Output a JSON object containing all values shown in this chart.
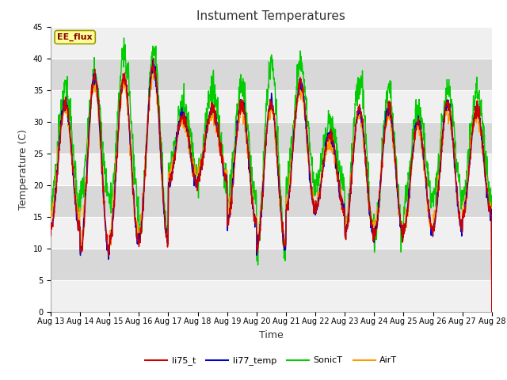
{
  "title": "Instument Temperatures",
  "xlabel": "Time",
  "ylabel": "Temperature (C)",
  "ylim": [
    0,
    45
  ],
  "x_ticks": [
    "Aug 13",
    "Aug 14",
    "Aug 15",
    "Aug 16",
    "Aug 17",
    "Aug 18",
    "Aug 19",
    "Aug 20",
    "Aug 21",
    "Aug 22",
    "Aug 23",
    "Aug 24",
    "Aug 25",
    "Aug 26",
    "Aug 27",
    "Aug 28"
  ],
  "colors": {
    "li75_t": "#cc0000",
    "li77_temp": "#0000cc",
    "SonicT": "#00cc00",
    "AirT": "#ff9900"
  },
  "fig_bg": "#ffffff",
  "plot_bg": "#e8e8e8",
  "band_light": "#f0f0f0",
  "band_dark": "#d8d8d8",
  "annotation": "EE_flux",
  "annotation_bg": "#ffff99",
  "annotation_border": "#999900",
  "annotation_text_color": "#880000",
  "title_fontsize": 11,
  "axis_label_fontsize": 9,
  "tick_fontsize": 7
}
